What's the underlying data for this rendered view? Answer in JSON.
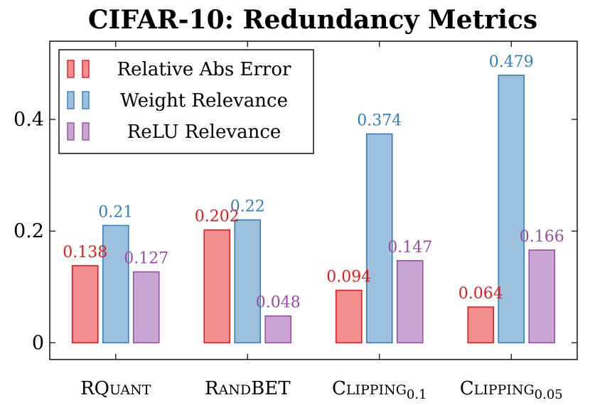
{
  "chart_data": {
    "type": "bar",
    "title": "CIFAR-10: Redundancy Metrics",
    "xlabel": "",
    "ylabel": "",
    "ylim": [
      -0.03,
      0.54
    ],
    "yticks": [
      0,
      0.2,
      0.4
    ],
    "ytick_labels": [
      "0",
      "0.2",
      "0.4"
    ],
    "grid": false,
    "legend_position": "top-left",
    "categories": [
      {
        "main": "RQuant",
        "sub": ""
      },
      {
        "main": "RandBET",
        "sub": ""
      },
      {
        "main": "Clipping",
        "sub": "0.1"
      },
      {
        "main": "Clipping",
        "sub": "0.05"
      }
    ],
    "series": [
      {
        "name": "Relative Abs Error",
        "fill": "#f28e8e",
        "stroke": "#e41a1c",
        "label_color": "#e41a1c",
        "values": [
          0.138,
          0.202,
          0.094,
          0.064
        ],
        "labels": [
          "0.138",
          "0.202",
          "0.094",
          "0.064"
        ]
      },
      {
        "name": "Weight Relevance",
        "fill": "#9dc1dd",
        "stroke": "#377eb8",
        "label_color": "#377eb8",
        "values": [
          0.21,
          0.22,
          0.374,
          0.479
        ],
        "labels": [
          "0.21",
          "0.22",
          "0.374",
          "0.479"
        ]
      },
      {
        "name": "ReLU Relevance",
        "fill": "#c9a5d3",
        "stroke": "#984ea3",
        "label_color": "#984ea3",
        "values": [
          0.127,
          0.048,
          0.147,
          0.166
        ],
        "labels": [
          "0.127",
          "0.048",
          "0.147",
          "0.166"
        ]
      }
    ]
  }
}
